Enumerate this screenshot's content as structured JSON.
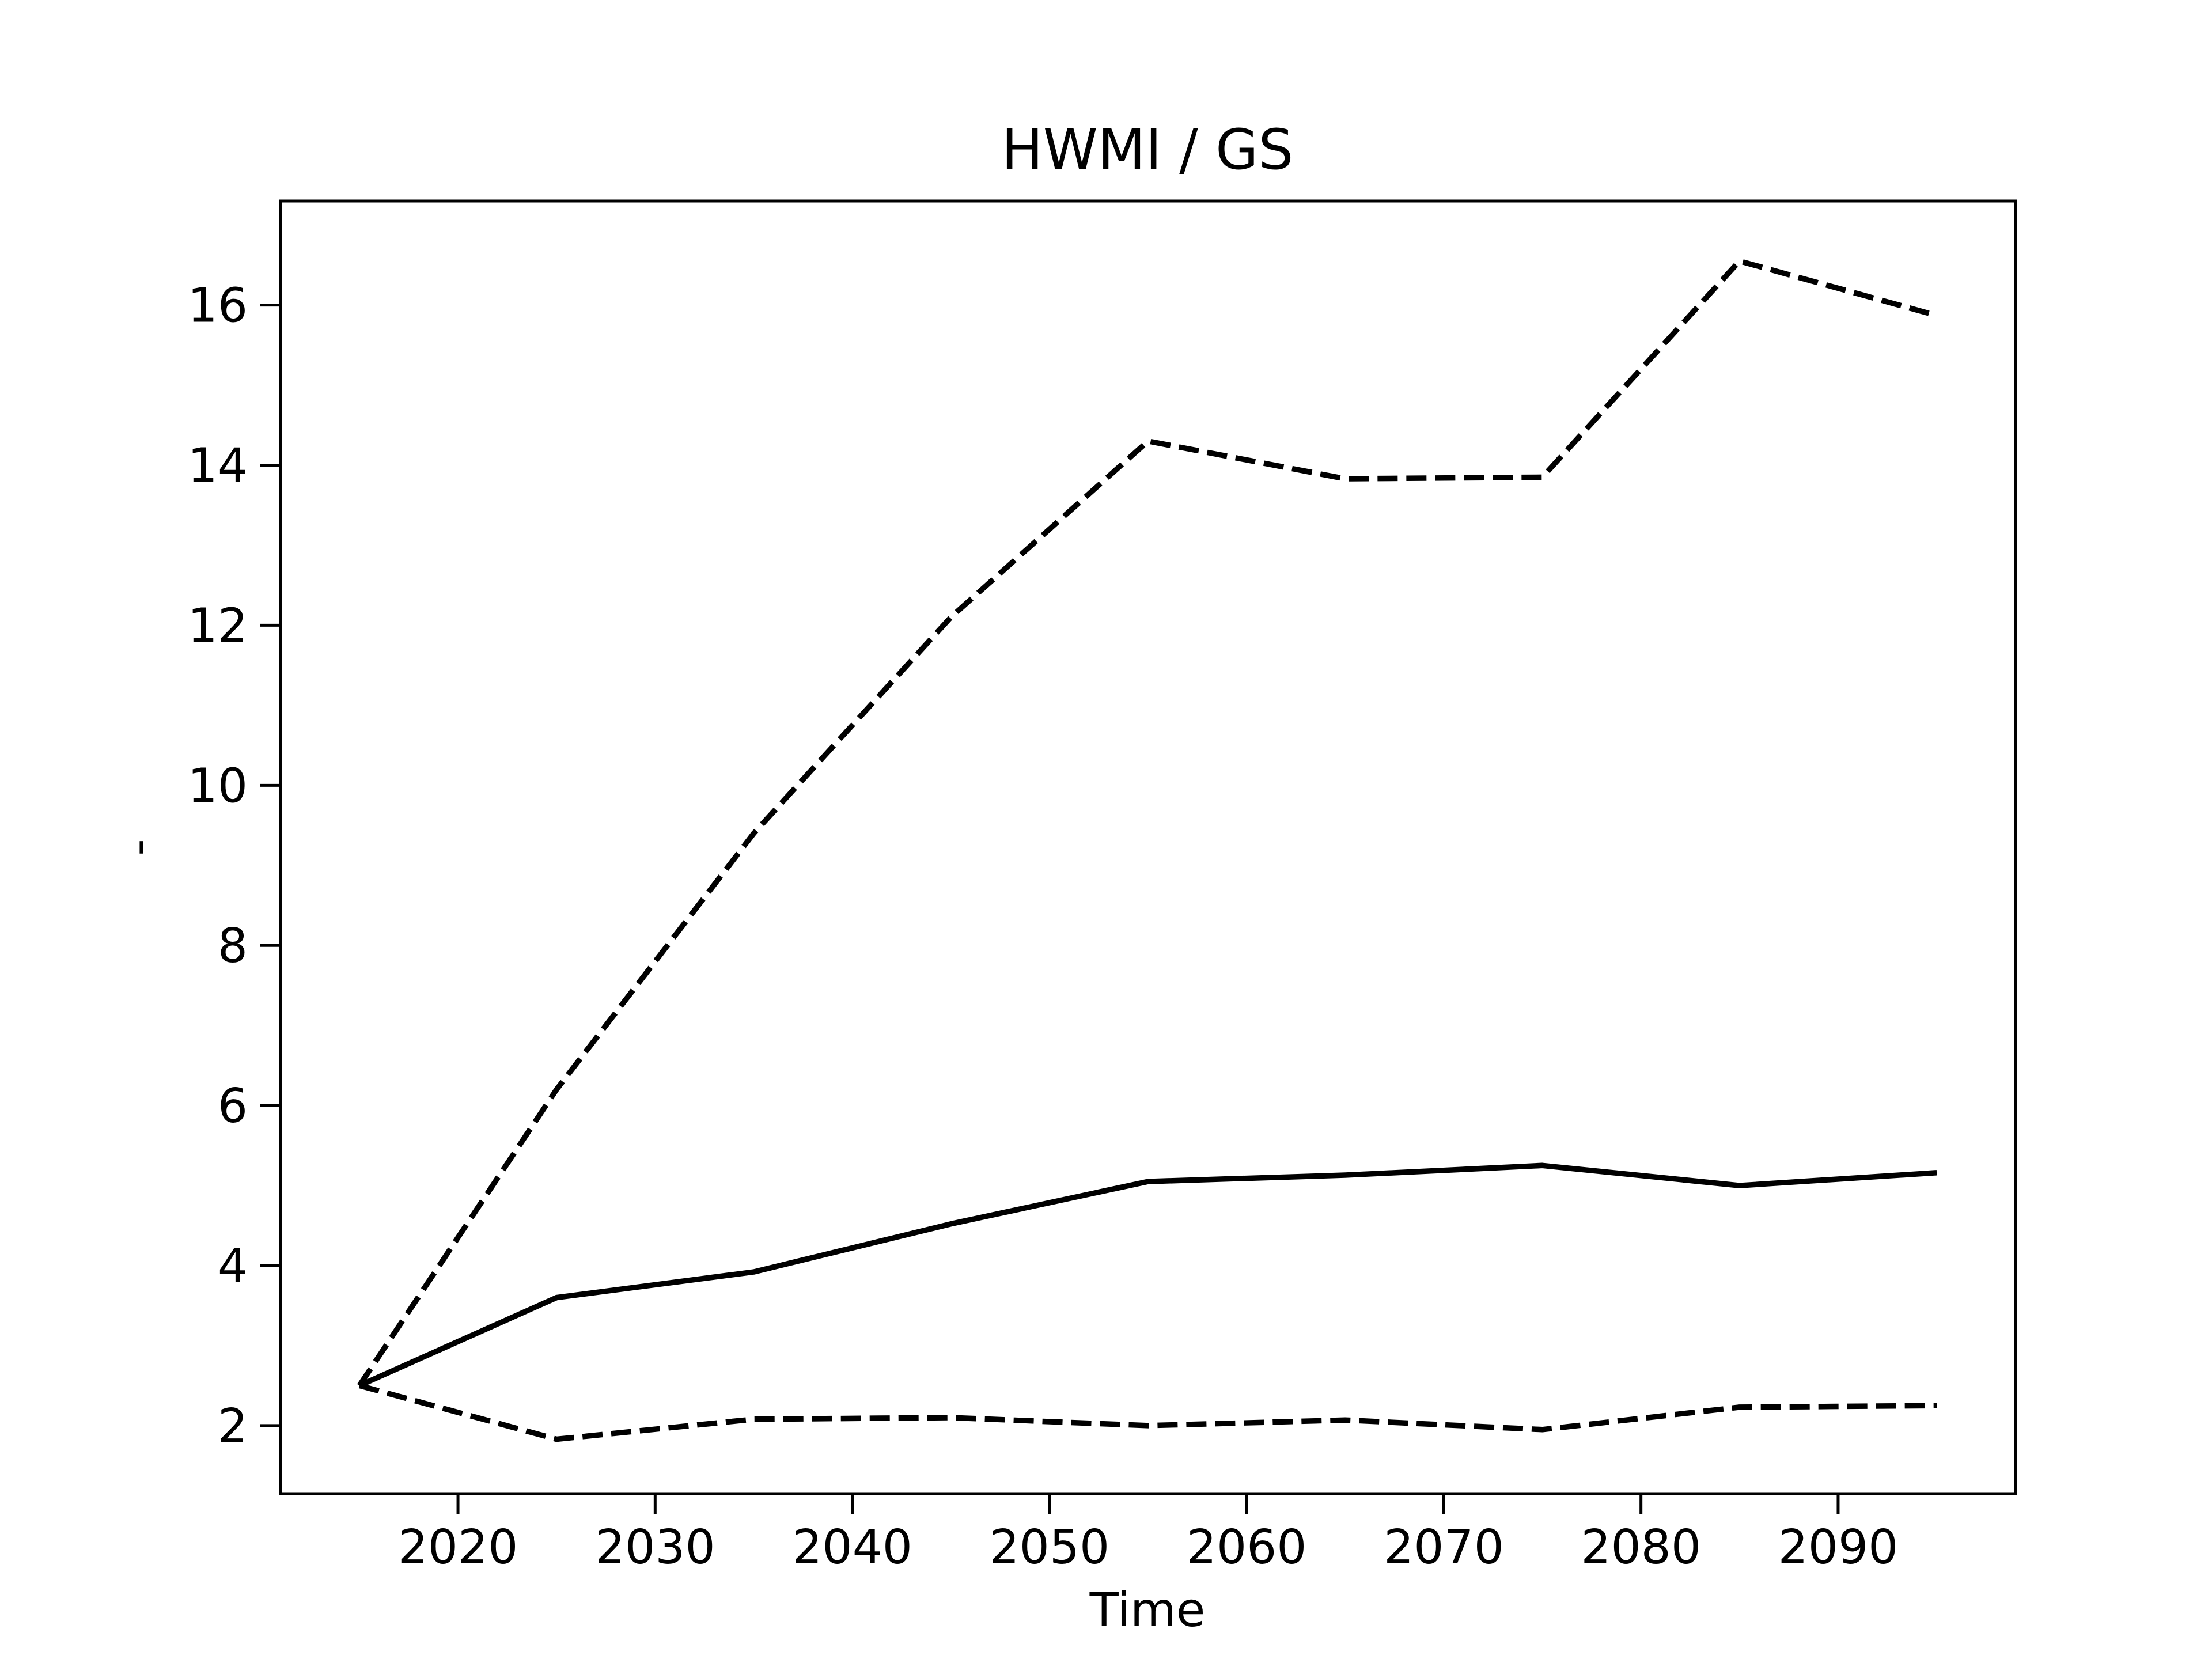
{
  "chart_data": {
    "type": "line",
    "title": "HWMI / GS",
    "xlabel": "Time",
    "ylabel": "-",
    "x": [
      2015,
      2025,
      2035,
      2045,
      2055,
      2065,
      2075,
      2085,
      2095
    ],
    "xlim": [
      2011,
      2099
    ],
    "ylim": [
      1.15,
      17.3
    ],
    "xticks": [
      2020,
      2030,
      2040,
      2050,
      2060,
      2070,
      2080,
      2090
    ],
    "yticks": [
      2,
      4,
      6,
      8,
      10,
      12,
      14,
      16
    ],
    "grid": false,
    "series": [
      {
        "style": "solid",
        "color": "#000000",
        "values": [
          2.5,
          3.6,
          3.92,
          4.52,
          5.05,
          5.13,
          5.25,
          5.0,
          5.16
        ]
      },
      {
        "style": "dashed",
        "color": "#000000",
        "values": [
          2.5,
          6.2,
          9.4,
          12.1,
          14.3,
          13.83,
          13.85,
          16.55,
          15.87
        ]
      },
      {
        "style": "dashed",
        "color": "#000000",
        "values": [
          2.5,
          1.83,
          2.08,
          2.1,
          2.0,
          2.07,
          1.95,
          2.23,
          2.25
        ]
      }
    ]
  }
}
